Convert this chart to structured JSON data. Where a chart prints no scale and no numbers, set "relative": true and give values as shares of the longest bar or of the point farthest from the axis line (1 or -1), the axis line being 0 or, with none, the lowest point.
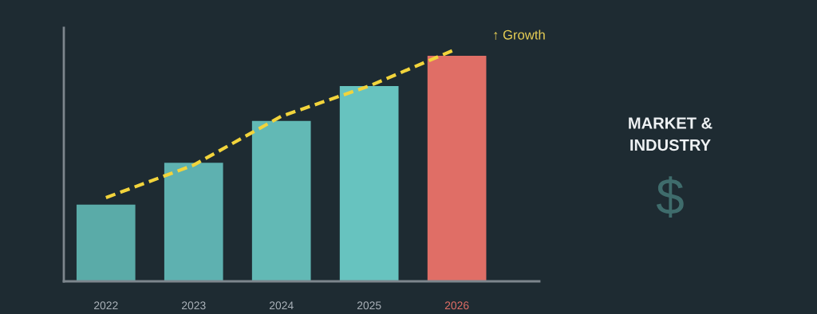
{
  "chart_data": {
    "type": "bar",
    "relative": true,
    "categories": [
      "2022",
      "2023",
      "2024",
      "2025",
      "2026"
    ],
    "series": [
      {
        "colors": [
          "#5aaba8",
          "#5eb1b0",
          "#62b9b5",
          "#67c3bf",
          "#e06e66"
        ],
        "values": [
          0.33,
          0.51,
          0.69,
          0.84,
          0.97
        ]
      },
      {
        "type": "line",
        "color": "#f2d43c",
        "line_style": "dashed",
        "marker": "none",
        "values": [
          0.36,
          0.5,
          0.71,
          0.84,
          1.0
        ]
      }
    ],
    "annotations": [
      {
        "text": "↑ Growth",
        "x": "2026",
        "y": 1.0
      },
      "MARKET & INDUSTRY",
      "$"
    ],
    "grid": false,
    "legend": false
  }
}
